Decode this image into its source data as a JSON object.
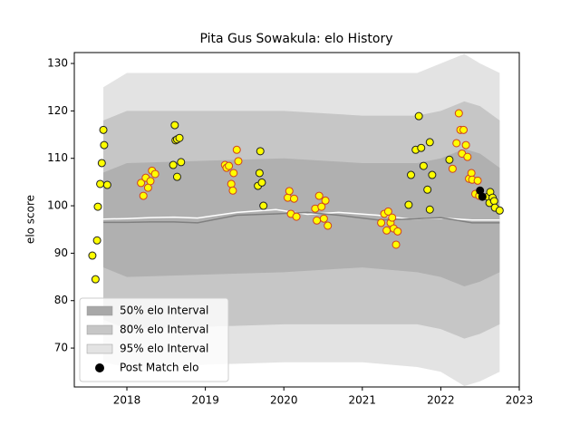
{
  "chart_data": {
    "type": "scatter",
    "title": "Pita Gus Sowakula: elo History",
    "ylabel": "elo score",
    "xlim": [
      2017.33,
      2023.0
    ],
    "ylim": [
      61.8,
      132.3
    ],
    "xticks": [
      2018,
      2019,
      2020,
      2021,
      2022,
      2023
    ],
    "yticks": [
      70,
      80,
      90,
      100,
      110,
      120,
      130
    ],
    "legend": "lower left",
    "bands": [
      {
        "name": "95% elo Interval",
        "color": "#e3e3e3",
        "x": [
          2017.7,
          2018.0,
          2020.0,
          2021.0,
          2021.7,
          2022.0,
          2022.3,
          2022.5,
          2022.75
        ],
        "upper": [
          125,
          128,
          128,
          128,
          128,
          130,
          132,
          130,
          128
        ],
        "lower": [
          67,
          66,
          67,
          67,
          66,
          65,
          62,
          63,
          65
        ]
      },
      {
        "name": "80% elo Interval",
        "color": "#c6c6c6",
        "x": [
          2017.7,
          2018.0,
          2020.0,
          2021.0,
          2021.7,
          2022.0,
          2022.3,
          2022.5,
          2022.75
        ],
        "upper": [
          118,
          120,
          120,
          119,
          119,
          120,
          122,
          121,
          118
        ],
        "lower": [
          76,
          74,
          75,
          75,
          75,
          74,
          72,
          73,
          75
        ]
      },
      {
        "name": "50% elo Interval",
        "color": "#b0b0b0",
        "x": [
          2017.7,
          2018.0,
          2020.0,
          2021.0,
          2021.7,
          2022.0,
          2022.3,
          2022.5,
          2022.75
        ],
        "upper": [
          107,
          109,
          110,
          109,
          109,
          110,
          112,
          111,
          108
        ],
        "lower": [
          87,
          85,
          86,
          87,
          86,
          85,
          83,
          84,
          86
        ]
      }
    ],
    "lines": [
      {
        "color": "#ffffff",
        "x": [
          2017.7,
          2018.0,
          2018.3,
          2018.6,
          2018.9,
          2019.4,
          2019.9,
          2020.3,
          2020.7,
          2021.2,
          2021.6,
          2022.0,
          2022.4,
          2022.75
        ],
        "values": [
          97.2,
          97.3,
          97.5,
          97.6,
          97.4,
          98.6,
          99.2,
          98.2,
          98.6,
          98.0,
          97.2,
          97.4,
          97.0,
          97.0
        ]
      },
      {
        "color": "#808080",
        "x": [
          2017.7,
          2018.0,
          2018.3,
          2018.6,
          2018.9,
          2019.4,
          2019.9,
          2020.3,
          2020.7,
          2021.2,
          2021.6,
          2022.0,
          2022.4,
          2022.75
        ],
        "values": [
          96.5,
          96.5,
          96.6,
          96.6,
          96.4,
          98.0,
          98.3,
          98.6,
          98.0,
          97.0,
          97.2,
          97.5,
          96.4,
          96.4
        ]
      }
    ],
    "series": [
      {
        "color": "#ffff00",
        "edge": "#d04020",
        "x": [
          2018.18,
          2018.21,
          2018.24,
          2018.27,
          2018.3,
          2018.32,
          2018.36,
          2019.25,
          2019.27,
          2019.3,
          2019.33,
          2019.35,
          2019.36,
          2019.4,
          2019.42,
          2020.05,
          2020.07,
          2020.09,
          2020.13,
          2020.16,
          2020.4,
          2020.42,
          2020.45,
          2020.48,
          2020.51,
          2020.53,
          2020.56,
          2021.24,
          2021.28,
          2021.31,
          2021.33,
          2021.36,
          2021.38,
          2021.4,
          2021.43,
          2021.45,
          2022.15,
          2022.2,
          2022.23,
          2022.25,
          2022.27,
          2022.29,
          2022.32,
          2022.34,
          2022.36,
          2022.39,
          2022.4,
          2022.44,
          2022.47,
          2022.49
        ],
        "values": [
          104.8,
          102.1,
          105.9,
          103.8,
          105.2,
          107.4,
          106.7,
          108.6,
          108.0,
          108.4,
          104.6,
          103.2,
          106.9,
          111.8,
          109.4,
          101.7,
          103.1,
          98.3,
          101.5,
          97.7,
          99.4,
          96.9,
          102.1,
          99.8,
          97.3,
          101.1,
          95.8,
          96.4,
          98.3,
          94.8,
          98.8,
          96.4,
          97.5,
          95.2,
          91.8,
          94.6,
          107.8,
          113.2,
          119.5,
          116.0,
          111.0,
          116.0,
          112.8,
          110.3,
          105.7,
          106.9,
          105.5,
          102.5,
          105.3,
          102.1
        ]
      },
      {
        "color": "#ffff00",
        "edge": "#202020",
        "x": [
          2017.56,
          2017.6,
          2017.62,
          2017.63,
          2017.66,
          2017.68,
          2017.7,
          2017.71,
          2017.75,
          2018.59,
          2018.61,
          2018.62,
          2018.64,
          2018.67,
          2018.64,
          2018.69,
          2019.67,
          2019.69,
          2019.7,
          2019.72,
          2019.74,
          2021.59,
          2021.62,
          2021.68,
          2021.72,
          2021.75,
          2021.78,
          2021.83,
          2021.86,
          2021.86,
          2021.89,
          2022.11,
          2022.6,
          2022.62,
          2022.63,
          2022.66,
          2022.68,
          2022.69,
          2022.75
        ],
        "values": [
          89.5,
          84.5,
          92.7,
          99.8,
          104.6,
          109.0,
          116.0,
          112.8,
          104.4,
          108.6,
          117.0,
          113.8,
          114.0,
          114.3,
          106.1,
          109.2,
          104.2,
          106.9,
          111.5,
          104.9,
          100.0,
          100.2,
          106.5,
          111.8,
          118.9,
          112.2,
          108.4,
          103.4,
          113.4,
          99.2,
          106.5,
          109.7,
          101.9,
          100.6,
          102.9,
          101.7,
          101.0,
          99.6,
          99.0
        ]
      },
      {
        "name": "Post Match elo",
        "color": "#000000",
        "edge": "#000000",
        "x": [
          2022.5,
          2022.53
        ],
        "values": [
          103.2,
          101.9
        ]
      }
    ]
  }
}
